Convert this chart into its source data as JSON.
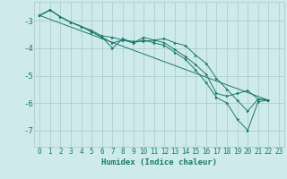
{
  "xlabel": "Humidex (Indice chaleur)",
  "background_color": "#ceeaea",
  "grid_color": "#aecece",
  "line_color": "#1a7a6e",
  "xlim": [
    -0.5,
    23.5
  ],
  "ylim": [
    -7.6,
    -2.3
  ],
  "yticks": [
    -7,
    -6,
    -5,
    -4,
    -3
  ],
  "xticks": [
    0,
    1,
    2,
    3,
    4,
    5,
    6,
    7,
    8,
    9,
    10,
    11,
    12,
    13,
    14,
    15,
    16,
    17,
    18,
    19,
    20,
    21,
    22,
    23
  ],
  "series": [
    {
      "x": [
        0,
        1,
        2,
        3,
        4,
        5,
        6,
        7,
        8,
        9,
        10,
        11,
        12,
        13,
        14,
        15,
        16,
        17,
        18,
        19,
        20,
        21,
        22
      ],
      "y": [
        -2.8,
        -2.6,
        -2.85,
        -3.05,
        -3.2,
        -3.35,
        -3.55,
        -3.6,
        -3.7,
        -3.75,
        -3.75,
        -3.7,
        -3.65,
        -3.8,
        -3.9,
        -4.25,
        -4.55,
        -5.1,
        -5.5,
        -5.9,
        -6.3,
        -5.85,
        -5.9
      ],
      "has_markers": true
    },
    {
      "x": [
        0,
        1,
        2,
        3,
        4,
        5,
        6,
        7,
        8,
        9,
        10,
        11,
        12,
        13,
        14,
        15,
        16,
        17,
        18,
        19,
        20,
        21,
        22
      ],
      "y": [
        -2.8,
        -2.6,
        -2.85,
        -3.05,
        -3.2,
        -3.4,
        -3.6,
        -4.0,
        -3.65,
        -3.8,
        -3.6,
        -3.7,
        -3.8,
        -4.05,
        -4.3,
        -4.6,
        -4.95,
        -5.65,
        -5.75,
        -5.65,
        -5.55,
        -5.85,
        -5.9
      ],
      "has_markers": true
    },
    {
      "x": [
        0,
        1,
        2,
        3,
        4,
        5,
        6,
        7,
        8,
        9,
        10,
        11,
        12,
        13,
        14,
        15,
        16,
        17,
        18,
        19,
        20,
        21,
        22
      ],
      "y": [
        -2.8,
        -2.6,
        -2.85,
        -3.05,
        -3.2,
        -3.4,
        -3.6,
        -3.8,
        -3.7,
        -3.8,
        -3.7,
        -3.8,
        -3.9,
        -4.15,
        -4.4,
        -4.8,
        -5.25,
        -5.8,
        -6.0,
        -6.6,
        -7.0,
        -5.95,
        -5.9
      ],
      "has_markers": true
    },
    {
      "x": [
        0,
        22
      ],
      "y": [
        -2.8,
        -5.9
      ],
      "has_markers": false
    }
  ],
  "fontsize_label": 6.5,
  "fontsize_tick": 5.5
}
